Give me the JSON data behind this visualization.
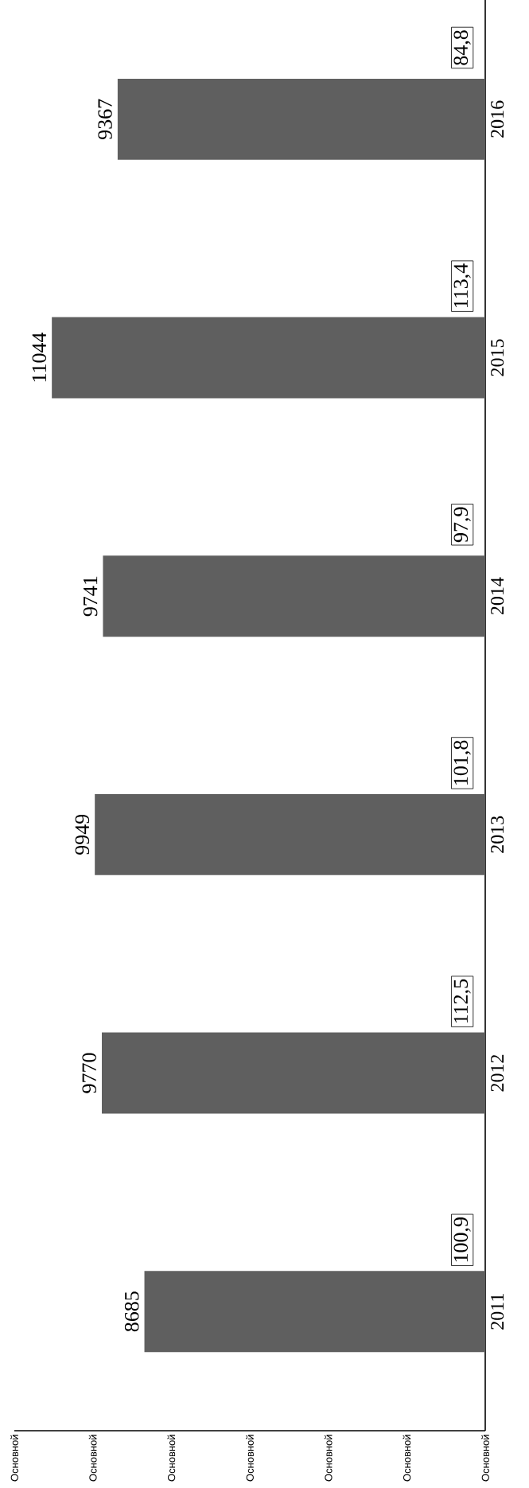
{
  "chart_data": {
    "type": "bar",
    "orientation": "horizontal",
    "categories": [
      "2016",
      "2015",
      "2014",
      "2013",
      "2012",
      "2011"
    ],
    "values": [
      9367,
      11044,
      9741,
      9949,
      9770,
      8685
    ],
    "color": "#5f5f5f",
    "data_labels": true,
    "xlim": [
      12000,
      0
    ],
    "annotations": [
      "84,8",
      "113,4",
      "97,9",
      "101,8",
      "112,5",
      "100,9",
      "Основной",
      "Основной",
      "Основной",
      "Основной",
      "Основной",
      "Основной",
      "Основной"
    ]
  }
}
